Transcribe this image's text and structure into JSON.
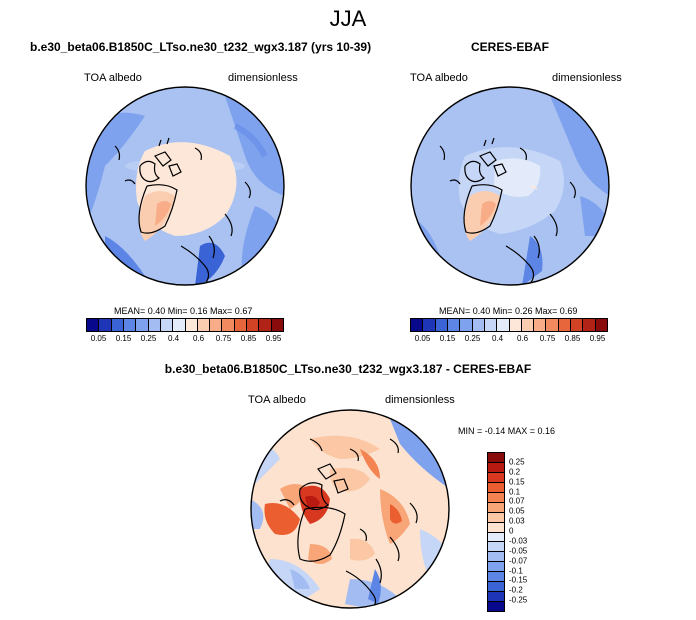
{
  "title": "JJA",
  "panels": [
    {
      "title": "b.e30_beta06.B1850C_LTso.ne30_t232_wgx3.187 (yrs 10-39)",
      "variable": "TOA albedo",
      "units": "dimensionless",
      "stats": "MEAN=  0.40  Min=  0.16  Max=  0.67"
    },
    {
      "title": "CERES-EBAF",
      "variable": "TOA albedo",
      "units": "dimensionless",
      "stats": "MEAN=  0.40  Min=  0.26  Max=  0.69"
    },
    {
      "title": "b.e30_beta06.B1850C_LTso.ne30_t232_wgx3.187 - CERES-EBAF",
      "variable": "TOA albedo",
      "units": "dimensionless",
      "stats": "MIN = -0.14 MAX =  0.16"
    }
  ],
  "colorbar_abs": {
    "labels": [
      "0.05",
      "0.15",
      "0.25",
      "0.4",
      "0.6",
      "0.75",
      "0.85",
      "0.95"
    ],
    "colors": [
      "#08088c",
      "#1f35b8",
      "#3a63d6",
      "#5c85e6",
      "#7fa2ee",
      "#a3bdf3",
      "#c6d6f7",
      "#e3ebfb",
      "#fde7d8",
      "#fbcdb0",
      "#f8ad88",
      "#f28a60",
      "#e8663c",
      "#d24224",
      "#b02316",
      "#8a0b0b"
    ]
  },
  "colorbar_diff": {
    "labels": [
      "0.25",
      "0.2",
      "0.15",
      "0.1",
      "0.07",
      "0.05",
      "0.03",
      "0",
      "-0.03",
      "-0.05",
      "-0.07",
      "-0.1",
      "-0.15",
      "-0.2",
      "-0.25"
    ],
    "colors": [
      "#8a0b0b",
      "#b81a12",
      "#d83820",
      "#ea5e30",
      "#f38350",
      "#f8a578",
      "#fbc7a4",
      "#fde3cf",
      "#e3ebfb",
      "#c6d6f7",
      "#a3bdf3",
      "#7fa2ee",
      "#5c85e6",
      "#3a63d6",
      "#1f35b8",
      "#08088c"
    ]
  }
}
